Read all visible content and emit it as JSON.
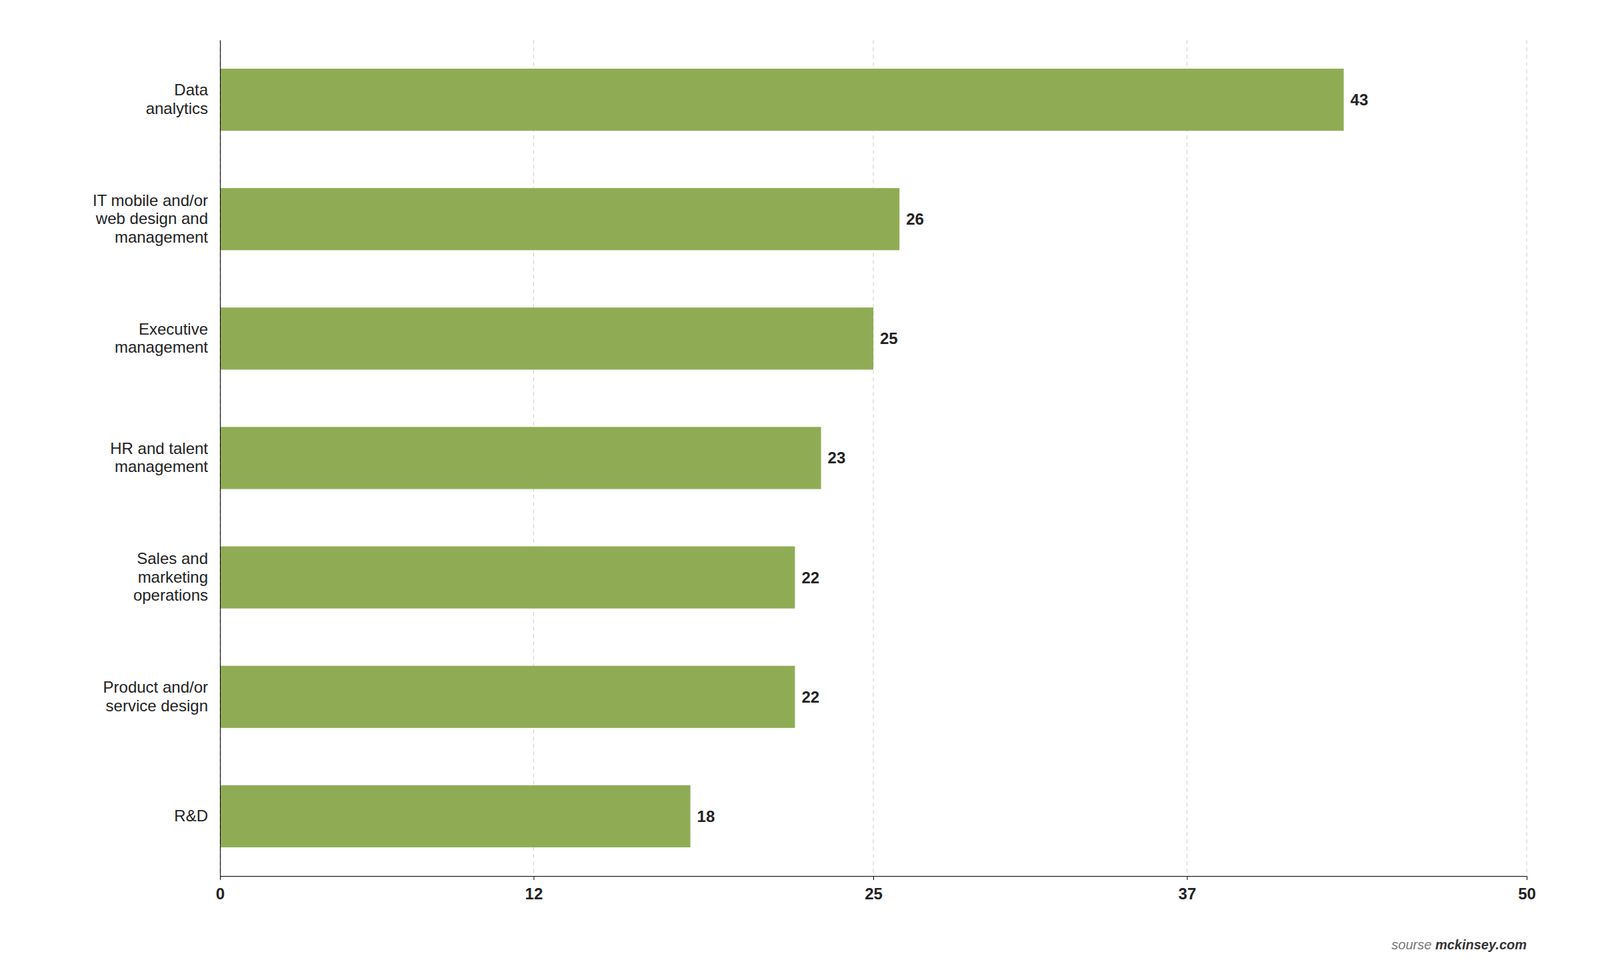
{
  "chart_data": {
    "type": "bar",
    "orientation": "horizontal",
    "categories": [
      "R&D",
      "Product and/or\nservice design",
      "Sales and\nmarketing\noperations",
      "HR and talent\nmanagement",
      "Executive\nmanagement",
      "IT mobile and/or\nweb design and\nmanagement",
      "Data\nanalytics"
    ],
    "values": [
      18,
      22,
      22,
      23,
      25,
      26,
      43
    ],
    "color": "#8fac55",
    "xlim": [
      0,
      50
    ],
    "xticks": [
      0,
      12,
      25,
      37,
      50
    ],
    "grid": true,
    "data_labels": true,
    "annotations": [
      "sourse ",
      "mckinsey.com"
    ]
  }
}
